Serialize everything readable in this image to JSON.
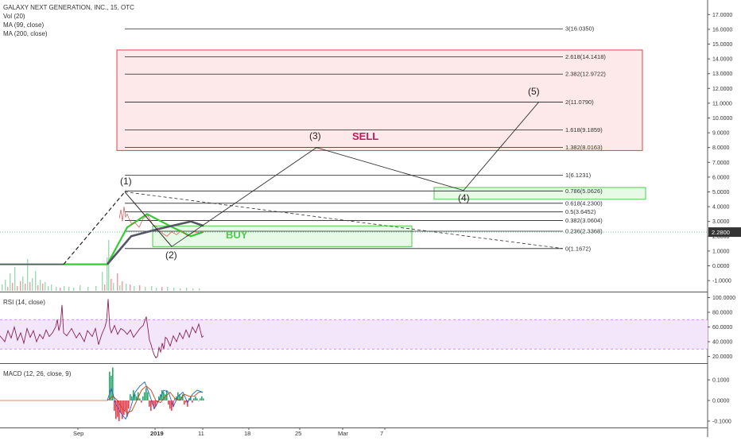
{
  "header": {
    "symbol_line": "GALAXY NEXT GENERATION, INC., 15, OTC",
    "indicator_vol": "Vol (20)",
    "indicator_ma99": "MA (99, close)",
    "indicator_ma200": "MA (200, close)"
  },
  "colors": {
    "sell_zone": "#e8404f",
    "buy_zone": "#4fcc4f",
    "price_line": "#000000",
    "ma_fast": "#33cc33",
    "ma_slow": "#555566",
    "rsi_line": "#8b2252",
    "rsi_band": "#cc66ff",
    "macd_line": "#2266cc",
    "signal_line": "#cc4411",
    "hist_up": "#22aa66",
    "hist_down": "#ff3344",
    "price_badge": "#333333"
  },
  "chart_data": [
    {
      "type": "line",
      "pane": "price",
      "y_ticks": [
        "17.0000",
        "16.0000",
        "15.0000",
        "14.0000",
        "13.0000",
        "12.0000",
        "11.0000",
        "10.0000",
        "9.0000",
        "8.0000",
        "7.0000",
        "6.0000",
        "5.0000",
        "4.0000",
        "3.0000",
        "2.0000",
        "1.0000",
        "0.0000",
        "-1.0000"
      ],
      "ylim": [
        -1.5,
        17.5
      ],
      "x_ticks": [
        "Sep",
        "2019",
        "11",
        "18",
        "25",
        "Mar",
        "7"
      ],
      "current_price_label": "2.2800",
      "current_price": 2.28,
      "fib_levels": [
        {
          "label": "3(16.0350)",
          "value": 16.035
        },
        {
          "label": "2.618(14.1418)",
          "value": 14.1418
        },
        {
          "label": "2.382(12.9722)",
          "value": 12.9722
        },
        {
          "label": "2(11.0790)",
          "value": 11.079
        },
        {
          "label": "1.618(9.1859)",
          "value": 9.1859
        },
        {
          "label": "1.382(8.0163)",
          "value": 8.0163
        },
        {
          "label": "1(6.1231)",
          "value": 6.1231
        },
        {
          "label": "0.786(5.0626)",
          "value": 5.0626
        },
        {
          "label": "0.618(4.2300)",
          "value": 4.23
        },
        {
          "label": "0.5(3.6452)",
          "value": 3.6452
        },
        {
          "label": "0.382(3.0604)",
          "value": 3.0604
        },
        {
          "label": "0.236(2.3368)",
          "value": 2.3368
        },
        {
          "label": "0(1.1672)",
          "value": 1.1672
        }
      ],
      "wave_labels": [
        "(1)",
        "(2)",
        "(3)",
        "(4)",
        "(5)"
      ],
      "wave_values": [
        5.0,
        1.3,
        8.0,
        5.1,
        11.1
      ],
      "annotations": {
        "sell": "SELL",
        "buy": "BUY"
      },
      "sell_zone": [
        7.8,
        14.6
      ],
      "buy_zone": [
        1.3,
        2.7
      ],
      "green_zone_small": [
        4.5,
        5.3
      ]
    },
    {
      "type": "line",
      "pane": "rsi",
      "label": "RSI (14, close)",
      "y_ticks": [
        "100.0000",
        "80.0000",
        "60.0000",
        "40.0000",
        "20.0000"
      ],
      "ylim": [
        10,
        105
      ],
      "band": [
        30,
        70
      ]
    },
    {
      "type": "bar",
      "pane": "macd",
      "label": "MACD (12, 26, close, 9)",
      "y_ticks": [
        "0.1000",
        "0.0000",
        "-0.1000"
      ],
      "ylim": [
        -0.12,
        0.17
      ]
    }
  ]
}
